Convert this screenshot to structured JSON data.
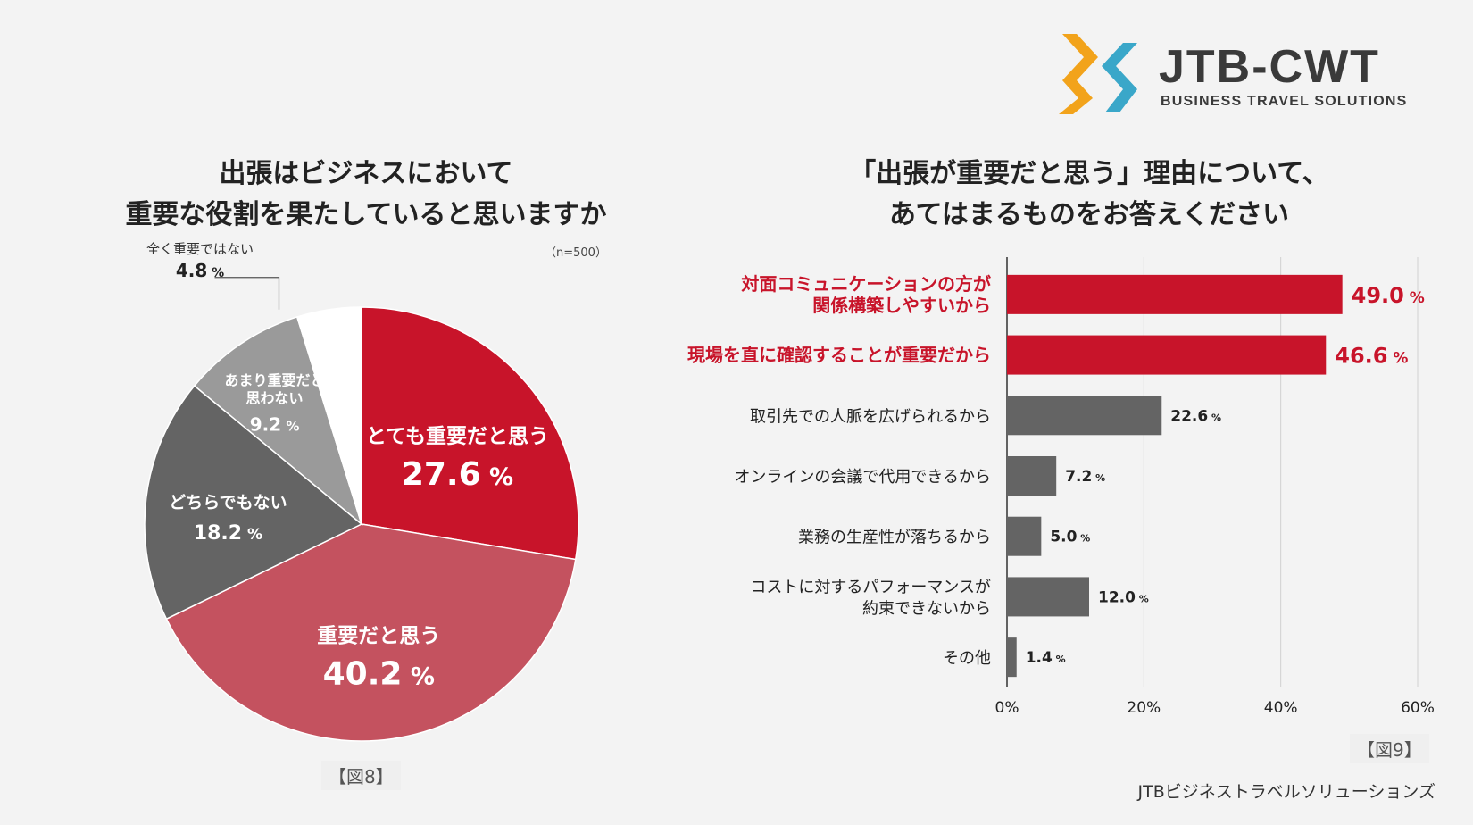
{
  "brand": {
    "name": "JTB-CWT",
    "tagline": "BUSINESS TRAVEL SOLUTIONS",
    "colors": {
      "orange": "#f2a31b",
      "blue": "#3aa7c9",
      "text": "#3a3a3a"
    }
  },
  "pie": {
    "title_line1": "出張はビジネスにおいて",
    "title_line2": "重要な役割を果たしていると思いますか",
    "n": "（n=500）",
    "figure_label": "【図8】"
  },
  "bar": {
    "title_line1": "「出張が重要だと思う」理由について、",
    "title_line2": "あてはまるものをお答えください",
    "figure_label": "【図9】"
  },
  "footer": "JTBビジネストラベルソリューションズ",
  "chart_data": [
    {
      "type": "pie",
      "title": "出張はビジネスにおいて重要な役割を果たしていると思いますか",
      "unit": "%",
      "slices": [
        {
          "label": "とても重要だと思う",
          "value": 27.6,
          "color": "#c8142a"
        },
        {
          "label": "重要だと思う",
          "value": 40.2,
          "color": "#c4525f"
        },
        {
          "label": "どちらでもない",
          "value": 18.2,
          "color": "#646464"
        },
        {
          "label": "あまり重要だと思わない",
          "label_lines": [
            "あまり重要だと",
            "思わない"
          ],
          "value": 9.2,
          "color": "#9a9a9a"
        },
        {
          "label": "全く重要ではない",
          "value": 4.8,
          "color": "#ffffff"
        }
      ]
    },
    {
      "type": "bar",
      "orientation": "horizontal",
      "title": "「出張が重要だと思う」理由について、あてはまるものをお答えください",
      "unit": "%",
      "categories": [
        [
          "対面コミュニケーションの方が",
          "関係構築しやすいから"
        ],
        [
          "現場を直に確認することが重要だから"
        ],
        [
          "取引先での人脈を広げられるから"
        ],
        [
          "オンラインの会議で代用できるから"
        ],
        [
          "業務の生産性が落ちるから"
        ],
        [
          "コストに対するパフォーマンスが",
          "約束できないから"
        ],
        [
          "その他"
        ]
      ],
      "values": [
        49.0,
        46.6,
        22.6,
        7.2,
        5.0,
        12.0,
        1.4
      ],
      "highlight": [
        true,
        true,
        false,
        false,
        false,
        false,
        false
      ],
      "colors": {
        "highlight": "#c8142a",
        "normal": "#646464"
      },
      "xlim": [
        0,
        60
      ],
      "xticks": [
        0,
        20,
        40,
        60
      ],
      "xtick_labels": [
        "0%",
        "20%",
        "40%",
        "60%"
      ],
      "grid": true
    }
  ]
}
